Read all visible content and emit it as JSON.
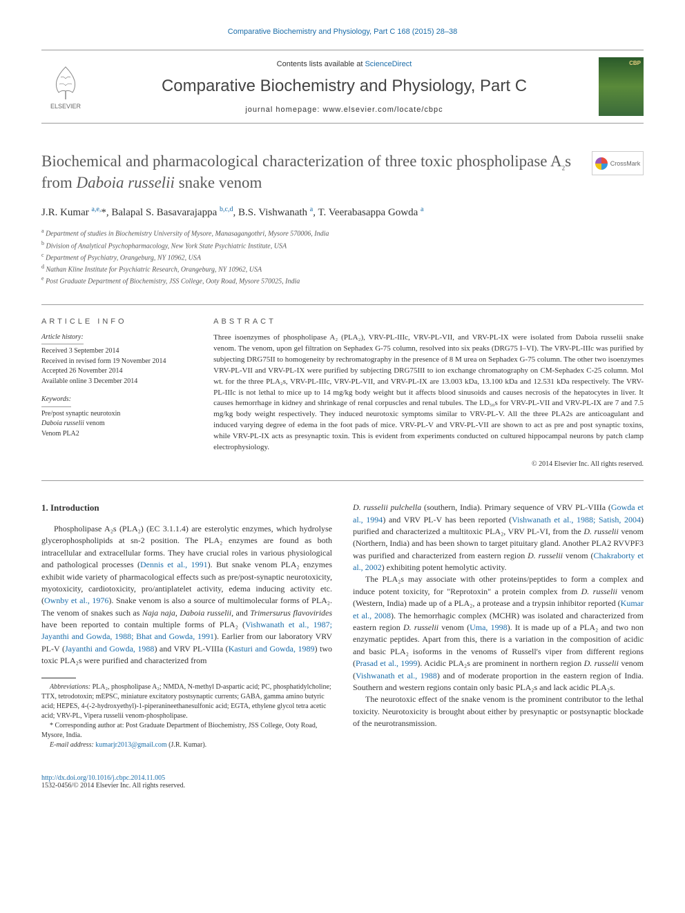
{
  "top_link": "Comparative Biochemistry and Physiology, Part C 168 (2015) 28–38",
  "masthead": {
    "contents_label": "Contents lists available at ",
    "sciencedirect": "ScienceDirect",
    "journal_title": "Comparative Biochemistry and Physiology, Part C",
    "homepage_label": "journal homepage: www.elsevier.com/locate/cbpc",
    "publisher_name": "ELSEVIER"
  },
  "crossmark_label": "CrossMark",
  "article": {
    "title_part1": "Biochemical and pharmacological characterization of three toxic phospholipase A",
    "title_sub": "2",
    "title_part2": "s from ",
    "title_italic": "Daboia russelii",
    "title_part3": " snake venom",
    "authors_html": "J.R. Kumar <sup class='sup'>a,e,</sup><span class='star'>*</span>, Balapal S. Basavarajappa <sup class='sup'>b,c,d</sup>, B.S. Vishwanath <sup class='sup'>a</sup>, T. Veerabasappa Gowda <sup class='sup'>a</sup>",
    "affiliations": [
      {
        "sup": "a",
        "text": "Department of studies in Biochemistry University of Mysore, Manasagangothri, Mysore 570006, India"
      },
      {
        "sup": "b",
        "text": "Division of Analytical Psychopharmacology, New York State Psychiatric Institute, USA"
      },
      {
        "sup": "c",
        "text": "Department of Psychiatry, Orangeburg, NY 10962, USA"
      },
      {
        "sup": "d",
        "text": "Nathan Kline Institute for Psychiatric Research, Orangeburg, NY 10962, USA"
      },
      {
        "sup": "e",
        "text": "Post Graduate Department of Biochemistry, JSS College, Ooty Road, Mysore 570025, India"
      }
    ]
  },
  "article_info": {
    "heading": "ARTICLE INFO",
    "history_label": "Article history:",
    "history": [
      "Received 3 September 2014",
      "Received in revised form 19 November 2014",
      "Accepted 26 November 2014",
      "Available online 3 December 2014"
    ],
    "keywords_label": "Keywords:",
    "keywords": [
      "Pre/post synaptic neurotoxin",
      "Daboia russelii venom",
      "Venom PLA2"
    ]
  },
  "abstract": {
    "heading": "ABSTRACT",
    "text": "Three isoenzymes of phospholipase A₂ (PLA₂), VRV-PL-IIIc, VRV-PL-VII, and VRV-PL-IX were isolated from Daboia russelii snake venom. The venom, upon gel filtration on Sephadex G-75 column, resolved into six peaks (DRG75 I–VI). The VRV-PL-IIIc was purified by subjecting DRG75II to homogeneity by rechromatography in the presence of 8 M urea on Sephadex G-75 column. The other two isoenzymes VRV-PL-VII and VRV-PL-IX were purified by subjecting DRG75III to ion exchange chromatography on CM-Sephadex C-25 column. Mol wt. for the three PLA₂s, VRV-PL-IIIc, VRV-PL-VII, and VRV-PL-IX are 13.003 kDa, 13.100 kDa and 12.531 kDa respectively. The VRV-PL-IIIc is not lethal to mice up to 14 mg/kg body weight but it affects blood sinusoids and causes necrosis of the hepatocytes in liver. It causes hemorrhage in kidney and shrinkage of renal corpuscles and renal tubules. The LD₅₀s for VRV-PL-VII and VRV-PL-IX are 7 and 7.5 mg/kg body weight respectively. They induced neurotoxic symptoms similar to VRV-PL-V. All the three PLA2s are anticoagulant and induced varying degree of edema in the foot pads of mice. VRV-PL-V and VRV-PL-VII are shown to act as pre and post synaptic toxins, while VRV-PL-IX acts as presynaptic toxin. This is evident from experiments conducted on cultured hippocampal neurons by patch clamp electrophysiology.",
    "copyright": "© 2014 Elsevier Inc. All rights reserved."
  },
  "body": {
    "section_heading": "1. Introduction",
    "col1_paras": [
      "Phospholipase A₂s (PLA₂) (EC 3.1.1.4) are esterolytic enzymes, which hydrolyse glycerophospholipids at sn-2 position. The PLA₂ enzymes are found as both intracellular and extracellular forms. They have crucial roles in various physiological and pathological processes (<span class='citation'>Dennis et al., 1991</span>). But snake venom PLA₂ enzymes exhibit wide variety of pharmacological effects such as pre/post-synaptic neurotoxicity, myotoxicity, cardiotoxicity, pro/antiplatelet activity, edema inducing activity etc. (<span class='citation'>Ownby et al., 1976</span>). Snake venom is also a source of multimolecular forms of PLA₂. The venom of snakes such as <i>Naja naja</i>, <i>Daboia russelii</i>, and <i>Trimersurus flavovirides</i> have been reported to contain multiple forms of PLA₂ (<span class='citation'>Vishwanath et al., 1987; Jayanthi and Gowda, 1988; Bhat and Gowda, 1991</span>). Earlier from our laboratory VRV PL-V (<span class='citation'>Jayanthi and Gowda, 1988</span>) and VRV PL-VIIIa (<span class='citation'>Kasturi and Gowda, 1989</span>) two toxic PLA₂s were purified and characterized from"
    ],
    "col2_paras": [
      "<i>D. russelii pulchella</i> (southern, India). Primary sequence of VRV PL-VIIIa (<span class='citation'>Gowda et al., 1994</span>) and VRV PL-V has been reported (<span class='citation'>Vishwanath et al., 1988; Satish, 2004</span>) purified and characterized a multitoxic PLA₂, VRV PL-VI, from the <i>D. russelii</i> venom (Northern, India) and has been shown to target pituitary gland. Another PLA2 RVVPF3 was purified and characterized from eastern region <i>D. russelii</i> venom (<span class='citation'>Chakraborty et al., 2002</span>) exhibiting potent hemolytic activity.",
      "The PLA₂s may associate with other proteins/peptides to form a complex and induce potent toxicity, for \"Reprotoxin\" a protein complex from <i>D. russelii</i> venom (Western, India) made up of a PLA₂, a protease and a trypsin inhibitor reported (<span class='citation'>Kumar et al., 2008</span>). The hemorrhagic complex (MCHR) was isolated and characterized from eastern region <i>D. russelii</i> venom (<span class='citation'>Uma, 1998</span>). It is made up of a PLA₂ and two non enzymatic peptides. Apart from this, there is a variation in the composition of acidic and basic PLA₂ isoforms in the venoms of Russell's viper from different regions (<span class='citation'>Prasad et al., 1999</span>). Acidic PLA₂s are prominent in northern region <i>D. russelii</i> venom (<span class='citation'>Vishwanath et al., 1988</span>) and of moderate proportion in the eastern region of India. Southern and western regions contain only basic PLA₂s and lack acidic PLA₂s.",
      "The neurotoxic effect of the snake venom is the prominent contributor to the lethal toxicity. Neurotoxicity is brought about either by presynaptic or postsynaptic blockade of the neurotransmission."
    ]
  },
  "footnotes": {
    "abbrev_label": "Abbreviations:",
    "abbrev_text": " PLA₂, phospholipase A₂; NMDA, N-methyl D-aspartic acid; PC, phosphatidylcholine; TTX, tetrodotoxin; mEPSC, miniature excitatory postsynaptic currents; GABA, gamma amino butyric acid; HEPES, 4-(-2-hydroxyethyl)-1-piperanineethanesulfonic acid; EGTA, ethylene glycol tetra acetic acid; VRV-PL, Vipera russelii venom-phospholipase.",
    "corr_label": "* Corresponding author at: ",
    "corr_text": "Post Graduate Department of Biochemistry, JSS College, Ooty Road, Mysore, India.",
    "email_label": "E-mail address: ",
    "email": "kumarjr2013@gmail.com",
    "email_suffix": " (J.R. Kumar)."
  },
  "footer": {
    "doi": "http://dx.doi.org/10.1016/j.cbpc.2014.11.005",
    "copyright": "1532-0456/© 2014 Elsevier Inc. All rights reserved."
  },
  "colors": {
    "link": "#1a6ca8",
    "text": "#333333",
    "heading_gray": "#5a5a5a"
  }
}
